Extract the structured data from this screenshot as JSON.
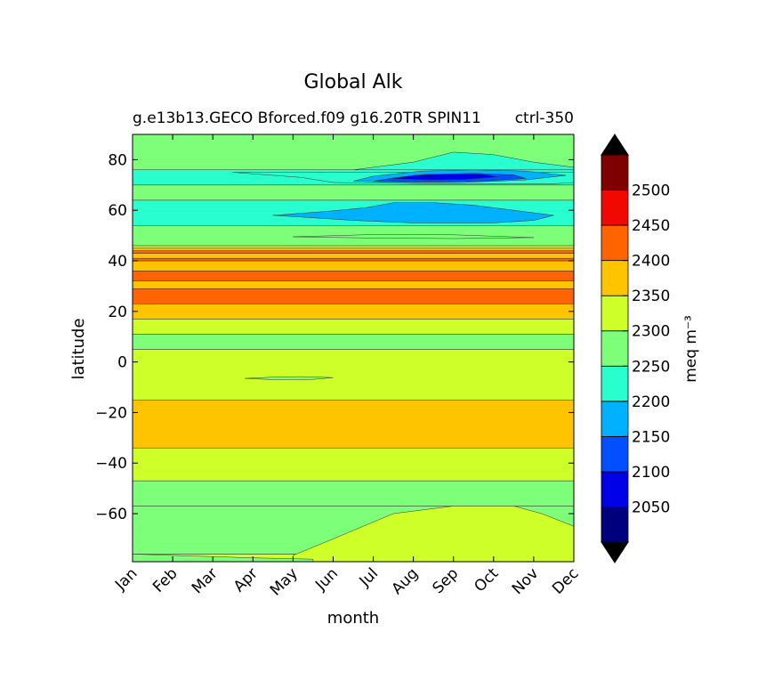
{
  "chart_data": {
    "type": "heatmap",
    "title": "Global Alk",
    "subtitle_left": "g.e13b13.GECO Bforced.f09 g16.20TR SPIN11",
    "subtitle_right": "ctrl-350",
    "xlabel": "month",
    "ylabel": "latitude",
    "x_ticks": [
      "Jan",
      "Feb",
      "Mar",
      "Apr",
      "May",
      "Jun",
      "Jul",
      "Aug",
      "Sep",
      "Oct",
      "Nov",
      "Dec"
    ],
    "xlim": [
      0,
      11
    ],
    "y_ticks": [
      80,
      60,
      40,
      20,
      0,
      -20,
      -40,
      -60
    ],
    "y_tick_labels": [
      "80",
      "60",
      "40",
      "20",
      "0",
      "−20",
      "−40",
      "−60"
    ],
    "ylim": [
      -79,
      90
    ],
    "colorbar": {
      "label": "meq m⁻³",
      "levels": [
        2000,
        2050,
        2100,
        2150,
        2200,
        2250,
        2300,
        2350,
        2400,
        2450,
        2500,
        2550
      ],
      "tick_labels": [
        "2050",
        "2100",
        "2150",
        "2200",
        "2250",
        "2300",
        "2350",
        "2400",
        "2450",
        "2500"
      ],
      "colors": [
        "#00007f",
        "#0000e6",
        "#0050ff",
        "#00b1ff",
        "#29ffce",
        "#7dff7a",
        "#ceff29",
        "#ffc400",
        "#ff6400",
        "#f10800",
        "#7f0000"
      ],
      "extend": "both",
      "extend_colors": [
        "#000000",
        "#000000"
      ]
    },
    "bands": [
      {
        "lat_range": [
          -79,
          -76
        ],
        "level": 2300
      },
      {
        "lat_range": [
          -76,
          -57
        ],
        "level": 2250
      },
      {
        "lat_range": [
          -57,
          -47
        ],
        "level": 2250
      },
      {
        "lat_range": [
          -47,
          -34
        ],
        "level": 2300
      },
      {
        "lat_range": [
          -34,
          -15
        ],
        "level": 2350
      },
      {
        "lat_range": [
          -15,
          5
        ],
        "level": 2300
      },
      {
        "lat_range": [
          5,
          11
        ],
        "level": 2250
      },
      {
        "lat_range": [
          11,
          17
        ],
        "level": 2300
      },
      {
        "lat_range": [
          17,
          23
        ],
        "level": 2350
      },
      {
        "lat_range": [
          23,
          29
        ],
        "level": 2400
      },
      {
        "lat_range": [
          29,
          32
        ],
        "level": 2350
      },
      {
        "lat_range": [
          32,
          36
        ],
        "level": 2400
      },
      {
        "lat_range": [
          36,
          40
        ],
        "level": 2350
      },
      {
        "lat_range": [
          40,
          41
        ],
        "level": 2400
      },
      {
        "lat_range": [
          41,
          43
        ],
        "level": 2350
      },
      {
        "lat_range": [
          43,
          44
        ],
        "level": 2400
      },
      {
        "lat_range": [
          44,
          45
        ],
        "level": 2350
      },
      {
        "lat_range": [
          45,
          46
        ],
        "level": 2300
      },
      {
        "lat_range": [
          46,
          54
        ],
        "level": 2250
      },
      {
        "lat_range": [
          54,
          64
        ],
        "level": 2200
      },
      {
        "lat_range": [
          64,
          70
        ],
        "level": 2250
      },
      {
        "lat_range": [
          70,
          76
        ],
        "level": 2200
      },
      {
        "lat_range": [
          76,
          90
        ],
        "level": 2250
      }
    ],
    "features": [
      {
        "level": 2300,
        "points": [
          [
            4.0,
            -76.5
          ],
          [
            5.0,
            -70
          ],
          [
            6.5,
            -60
          ],
          [
            8.0,
            -57
          ],
          [
            9.5,
            -57
          ],
          [
            10.2,
            -60
          ],
          [
            11,
            -65
          ],
          [
            11,
            -79
          ],
          [
            4.0,
            -79
          ]
        ]
      },
      {
        "level": 2250,
        "points": [
          [
            0,
            -76
          ],
          [
            3.0,
            -77.5
          ],
          [
            4.5,
            -78
          ],
          [
            4.5,
            -79
          ],
          [
            0,
            -79
          ]
        ]
      },
      {
        "level": 2200,
        "points": [
          [
            5.5,
            76
          ],
          [
            7.0,
            79
          ],
          [
            8.0,
            83
          ],
          [
            9.0,
            82
          ],
          [
            10.0,
            79
          ],
          [
            11,
            77
          ],
          [
            11,
            76
          ]
        ]
      },
      {
        "level": 2200,
        "points": [
          [
            2.5,
            75
          ],
          [
            4.2,
            73
          ],
          [
            5.0,
            71
          ],
          [
            7.5,
            70.5
          ],
          [
            10.5,
            70.5
          ],
          [
            11,
            71
          ],
          [
            11,
            75
          ]
        ]
      },
      {
        "level": 2150,
        "points": [
          [
            5.5,
            71.5
          ],
          [
            6.0,
            73.5
          ],
          [
            7.2,
            75.5
          ],
          [
            8.5,
            76
          ],
          [
            9.8,
            75.5
          ],
          [
            10.8,
            73.8
          ],
          [
            9.8,
            72.0
          ],
          [
            8.2,
            71.0
          ],
          [
            7.0,
            71.0
          ]
        ]
      },
      {
        "level": 2100,
        "points": [
          [
            6.0,
            71.5
          ],
          [
            6.6,
            73
          ],
          [
            7.3,
            74.2
          ],
          [
            8.5,
            74.6
          ],
          [
            9.5,
            74.0
          ],
          [
            9.8,
            72.6
          ],
          [
            8.8,
            71.6
          ],
          [
            7.5,
            71.2
          ]
        ]
      },
      {
        "level": 2050,
        "points": [
          [
            6.5,
            72.5
          ],
          [
            7.0,
            73.8
          ],
          [
            7.8,
            74.3
          ],
          [
            8.7,
            74.3
          ],
          [
            9.1,
            73.2
          ],
          [
            8.3,
            72.2
          ],
          [
            7.4,
            72.0
          ]
        ]
      },
      {
        "level": 2150,
        "points": [
          [
            3.5,
            58
          ],
          [
            4.5,
            57
          ],
          [
            5.5,
            56
          ],
          [
            7.0,
            55
          ],
          [
            9.0,
            55
          ],
          [
            10.0,
            56
          ],
          [
            10.5,
            58
          ],
          [
            9.5,
            60
          ],
          [
            8.5,
            62
          ],
          [
            7.5,
            63
          ],
          [
            6.5,
            63
          ],
          [
            5.8,
            61
          ],
          [
            4.8,
            59.5
          ]
        ]
      },
      {
        "level": 2250,
        "points": [
          [
            4.0,
            49.5
          ],
          [
            6.0,
            49.0
          ],
          [
            8.0,
            48.8
          ],
          [
            10.0,
            49.2
          ],
          [
            8.0,
            50.3
          ],
          [
            6.0,
            50.4
          ]
        ]
      },
      {
        "level": 2250,
        "points": [
          [
            2.8,
            -6.5
          ],
          [
            3.5,
            -6.0
          ],
          [
            4.2,
            -5.8
          ],
          [
            5.0,
            -6.2
          ],
          [
            4.5,
            -6.9
          ],
          [
            3.5,
            -7.0
          ]
        ]
      }
    ]
  }
}
